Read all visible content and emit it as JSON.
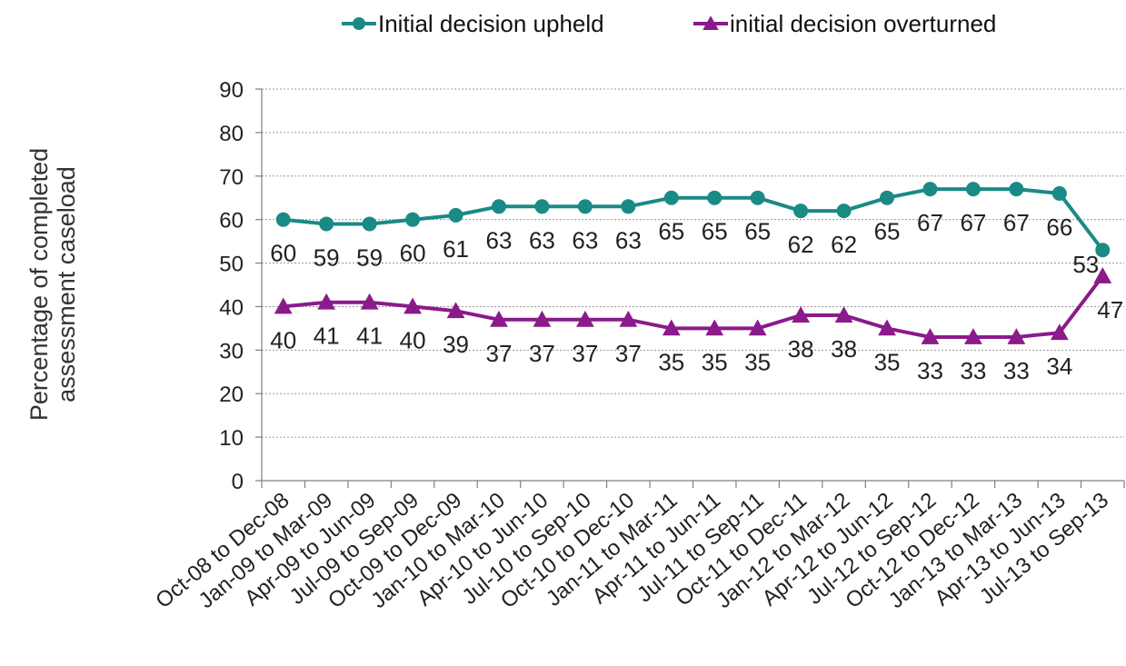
{
  "chart_data": {
    "type": "line",
    "title": "",
    "xlabel": "",
    "ylabel_lines": [
      "Percentage of completed",
      "assessment caseload"
    ],
    "ylim": [
      0,
      90
    ],
    "yticks": [
      0,
      10,
      20,
      30,
      40,
      50,
      60,
      70,
      80,
      90
    ],
    "grid": true,
    "legend_position": "top-center",
    "categories": [
      "Oct-08 to Dec-08",
      "Jan-09 to Mar-09",
      "Apr-09 to Jun-09",
      "Jul-09 to Sep-09",
      "Oct-09 to Dec-09",
      "Jan-10 to Mar-10",
      "Apr-10 to Jun-10",
      "Jul-10 to Sep-10",
      "Oct-10 to Dec-10",
      "Jan-11 to Mar-11",
      "Apr-11 to Jun-11",
      "Jul-11 to Sep-11",
      "Oct-11 to Dec-11",
      "Jan-12 to Mar-12",
      "Apr-12 to Jun-12",
      "Jul-12 to Sep-12",
      "Oct-12 to Dec-12",
      "Jan-13 to Mar-13",
      "Apr-13 to Jun-13",
      "Jul-13 to Sep-13"
    ],
    "series": [
      {
        "name": "Initial decision upheld",
        "color": "#1a8a85",
        "marker": "circle",
        "values": [
          60,
          59,
          59,
          60,
          61,
          63,
          63,
          63,
          63,
          65,
          65,
          65,
          62,
          62,
          65,
          67,
          67,
          67,
          66,
          53
        ]
      },
      {
        "name": "initial decision overturned",
        "color": "#8b1a8b",
        "marker": "triangle",
        "values": [
          40,
          41,
          41,
          40,
          39,
          37,
          37,
          37,
          37,
          35,
          35,
          35,
          38,
          38,
          35,
          33,
          33,
          33,
          34,
          47
        ]
      }
    ]
  }
}
